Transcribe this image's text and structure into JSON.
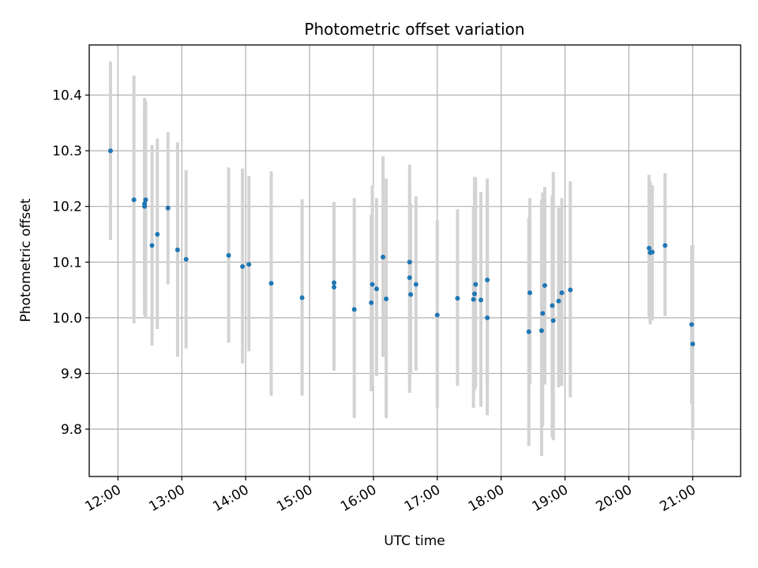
{
  "colors": {
    "point": "#1f77b4",
    "errorbar": "#d3d3d3",
    "grid": "#b0b0b0",
    "axis": "#000000"
  },
  "chart_data": {
    "type": "scatter",
    "title": "Photometric offset variation",
    "xlabel": "UTC time",
    "ylabel": "Photometric offset",
    "xlim": [
      "11:33",
      "21:45"
    ],
    "ylim": [
      9.715,
      10.49
    ],
    "grid": true,
    "x_ticks": [
      "12:00",
      "13:00",
      "14:00",
      "15:00",
      "16:00",
      "17:00",
      "18:00",
      "19:00",
      "20:00",
      "21:00"
    ],
    "x_tick_labels_rotated": true,
    "y_ticks": [
      9.8,
      9.9,
      10.0,
      10.1,
      10.2,
      10.3,
      10.4
    ],
    "y_tick_labels": [
      "9.8",
      "9.9",
      "10.0",
      "10.1",
      "10.2",
      "10.3",
      "10.4"
    ],
    "series": [
      {
        "x": [
          "11:53",
          "12:15",
          "12:25",
          "12:25",
          "12:26",
          "12:32",
          "12:37",
          "12:47",
          "12:56",
          "13:04",
          "13:44",
          "13:57",
          "14:03",
          "14:24",
          "14:53",
          "15:23",
          "15:23",
          "15:42",
          "15:58",
          "15:59",
          "16:03",
          "16:09",
          "16:12",
          "16:34",
          "16:34",
          "16:35",
          "16:40",
          "17:00",
          "17:19",
          "17:34",
          "17:35",
          "17:36",
          "17:41",
          "17:47",
          "17:47",
          "18:26",
          "18:27",
          "18:38",
          "18:39",
          "18:41",
          "18:48",
          "18:49",
          "18:54",
          "18:57",
          "19:05",
          "20:19",
          "20:20",
          "20:22",
          "20:34",
          "20:59",
          "21:00"
        ],
        "y": [
          10.3,
          10.212,
          10.205,
          10.2,
          10.212,
          10.13,
          10.15,
          10.197,
          10.122,
          10.105,
          10.112,
          10.092,
          10.096,
          10.062,
          10.036,
          10.063,
          10.055,
          10.015,
          10.027,
          10.06,
          10.052,
          10.109,
          10.034,
          10.1,
          10.072,
          10.042,
          10.06,
          10.005,
          10.035,
          10.033,
          10.043,
          10.06,
          10.032,
          10.068,
          10.0,
          9.975,
          10.045,
          9.977,
          10.008,
          10.058,
          10.022,
          9.995,
          10.03,
          10.045,
          10.05,
          10.125,
          10.117,
          10.118,
          10.13,
          9.988,
          9.953
        ],
        "y_err_low": [
          10.14,
          9.99,
          10.005,
          10.04,
          10.0,
          9.95,
          9.98,
          10.06,
          9.93,
          9.945,
          9.955,
          9.918,
          9.94,
          9.86,
          9.86,
          9.925,
          9.905,
          9.82,
          9.868,
          9.878,
          9.895,
          9.93,
          9.82,
          9.865,
          9.885,
          9.9,
          9.905,
          9.838,
          9.878,
          9.838,
          9.87,
          9.875,
          9.84,
          9.88,
          9.825,
          9.77,
          9.88,
          9.752,
          9.805,
          9.88,
          9.785,
          9.78,
          9.875,
          9.878,
          9.857,
          10.0,
          9.988,
          9.995,
          10.003,
          9.845,
          9.78
        ],
        "y_err_high": [
          10.46,
          10.435,
          10.395,
          10.38,
          10.39,
          10.31,
          10.322,
          10.333,
          10.315,
          10.265,
          10.27,
          10.268,
          10.255,
          10.263,
          10.213,
          10.208,
          10.205,
          10.215,
          10.185,
          10.238,
          10.215,
          10.29,
          10.25,
          10.275,
          10.24,
          10.205,
          10.218,
          10.175,
          10.195,
          10.2,
          10.253,
          10.252,
          10.226,
          10.25,
          10.228,
          10.18,
          10.215,
          10.212,
          10.225,
          10.235,
          10.22,
          10.262,
          10.198,
          10.215,
          10.245,
          10.257,
          10.245,
          10.238,
          10.26,
          10.13,
          10.13
        ]
      }
    ]
  }
}
